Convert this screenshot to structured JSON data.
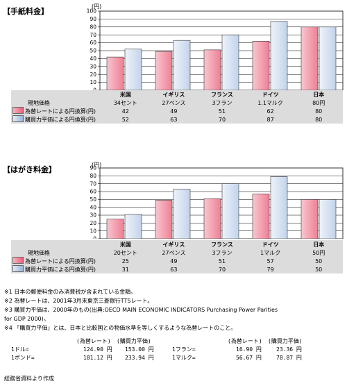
{
  "chart_data": [
    {
      "type": "bar",
      "title": "【手紙料金】",
      "unit": "(円)",
      "categories": [
        "米国",
        "イギリス",
        "フランス",
        "ドイツ",
        "日本"
      ],
      "local_prices": [
        "34セント",
        "27ペンス",
        "3フラン",
        "1.1マルク",
        "80円"
      ],
      "local_label": "現地価格",
      "ylim": [
        0,
        100
      ],
      "yticks": [
        0,
        10,
        20,
        30,
        40,
        50,
        60,
        70,
        80,
        90,
        100
      ],
      "series": [
        {
          "name": "為替レートによる円換算(円)",
          "values": [
            42,
            49,
            51,
            62,
            80
          ],
          "color": "#ee8095"
        },
        {
          "name": "購買力平価による円換算(円)",
          "values": [
            52,
            63,
            70,
            87,
            80
          ],
          "color": "#c2d3ea"
        }
      ]
    },
    {
      "type": "bar",
      "title": "【はがき料金】",
      "unit": "(円)",
      "categories": [
        "米国",
        "イギリス",
        "フランス",
        "ドイツ",
        "日本"
      ],
      "local_prices": [
        "20セント",
        "27ペンス",
        "3フラン",
        "1マルク",
        "50円"
      ],
      "local_label": "現地価格",
      "ylim": [
        0,
        90
      ],
      "yticks": [
        0,
        10,
        20,
        30,
        40,
        50,
        60,
        70,
        80,
        90
      ],
      "series": [
        {
          "name": "為替レートによる円換算(円)",
          "values": [
            25,
            49,
            51,
            57,
            50
          ],
          "color": "#ee8095"
        },
        {
          "name": "購買力平価による円換算(円)",
          "values": [
            31,
            63,
            70,
            79,
            50
          ],
          "color": "#c2d3ea"
        }
      ]
    }
  ],
  "notes": [
    "※1  日本の郵便料金のみ消費税が含まれている金額。",
    "※2  為替レートは、2001年3月末東京三菱銀行TTSレート。",
    "※3  購買力平価は、2000年のもの(出典:OECD MAIN ECONOMIC INDICATORS Purchasing Power Parities",
    "        for GDP 2000)。",
    "※4  「購買力平価」とは、日本と比較国との物価水準を等しくするような為替レートのこと。"
  ],
  "rates": {
    "header_rate": "(為替レート)",
    "header_ppp": "(購買力平価)",
    "rows": [
      {
        "label": "1ドル=",
        "rate": "124.90 円",
        "ppp": "153.00 円"
      },
      {
        "label": "1ポンド=",
        "rate": "181.12 円",
        "ppp": "233.94 円"
      },
      {
        "label": "1フラン=",
        "rate": "16.90 円",
        "ppp": "23.36 円"
      },
      {
        "label": "1マルク=",
        "rate": "56.67 円",
        "ppp": "78.87 円"
      }
    ]
  },
  "source": "総務省資料より作成"
}
